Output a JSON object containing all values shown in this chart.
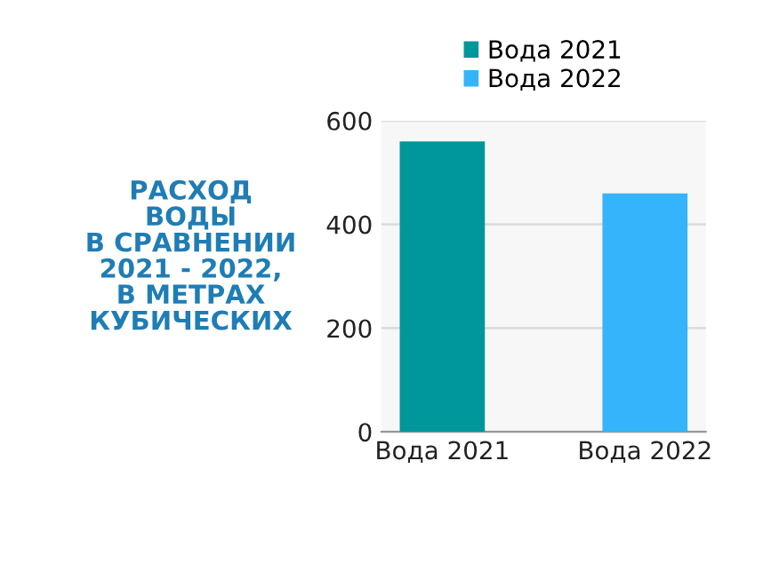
{
  "chart_data": {
    "type": "bar",
    "title": "РАСХОД\nВОДЫ\nВ СРАВНЕНИИ\n2021 - 2022,\nВ МЕТРАХ\nКУБИЧЕСКИХ",
    "categories": [
      "Вода 2021",
      "Вода 2022"
    ],
    "series": [
      {
        "name": "Вода 2021",
        "color": "#00979c",
        "values": [
          560,
          null
        ]
      },
      {
        "name": "Вода 2022",
        "color": "#36b4fb",
        "values": [
          null,
          460
        ]
      }
    ],
    "ylim": [
      0,
      600
    ],
    "yticks": [
      0,
      200,
      400,
      600
    ],
    "grid": "y",
    "legend": "top"
  }
}
